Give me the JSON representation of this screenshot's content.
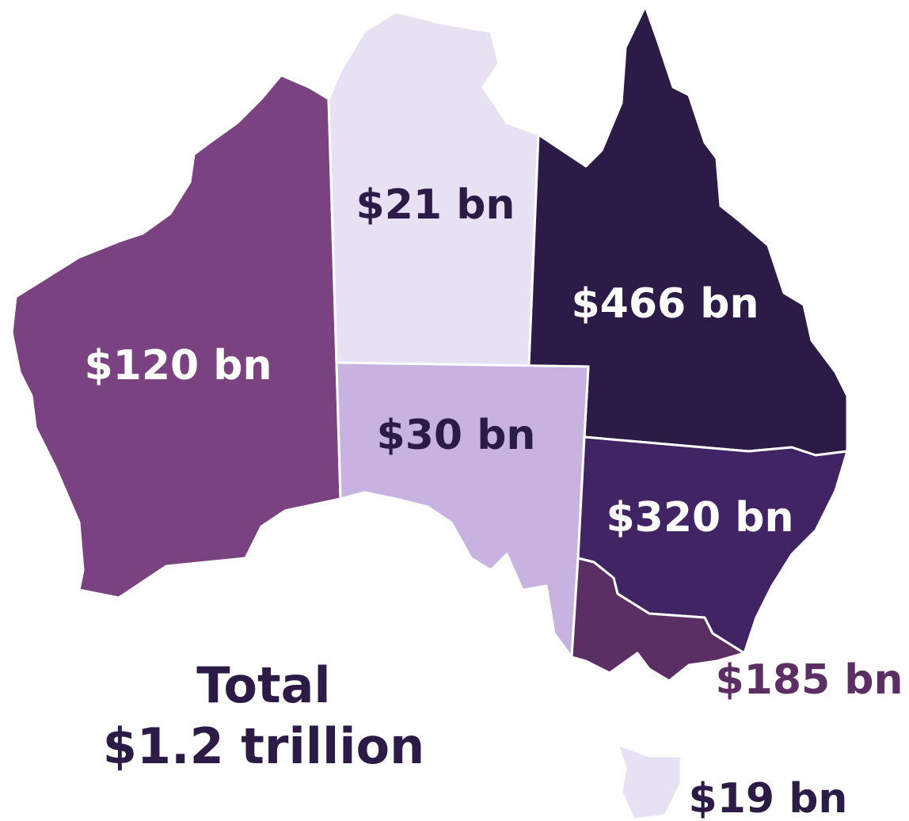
{
  "total": {
    "line1": "Total",
    "line2": "$1.2 trillion",
    "color": "#2d1b47"
  },
  "regions": [
    {
      "label": "$120 bn",
      "color": "#7b4282",
      "label_color": "#ffffff"
    },
    {
      "label": "$21 bn",
      "color": "#e8e0f3",
      "label_color": "#2d1b47"
    },
    {
      "label": "$466 bn",
      "color": "#2d1b47",
      "label_color": "#ffffff"
    },
    {
      "label": "$30 bn",
      "color": "#c7b2e0",
      "label_color": "#2d1b47"
    },
    {
      "label": "$320 bn",
      "color": "#412464",
      "label_color": "#ffffff"
    },
    {
      "label": "$185 bn",
      "color": "#5c2f64",
      "label_color": "#5c2f64"
    },
    {
      "label": "$19 bn",
      "color": "#e8e0f3",
      "label_color": "#2d1b47"
    }
  ]
}
